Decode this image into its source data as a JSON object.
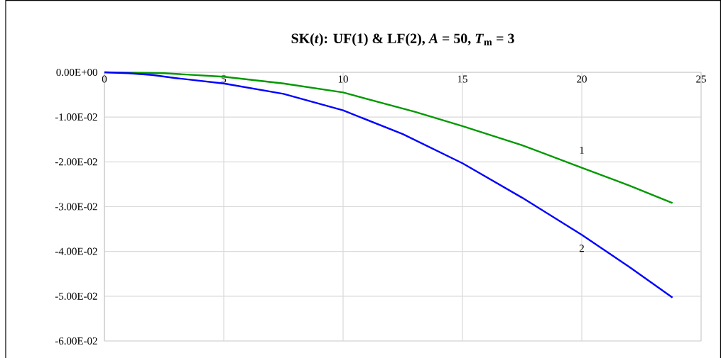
{
  "chart_data": {
    "type": "line",
    "title": "SK(*t*):  UF(1) & LF(2), *A* = 50, *T*$_{m}$ = 3",
    "xlim": [
      0,
      25
    ],
    "xticks": [
      0,
      5,
      10,
      15,
      20,
      25
    ],
    "ylim": [
      -0.06,
      0
    ],
    "yticks": [
      {
        "value": -0.06,
        "label": "-6.00E-02"
      },
      {
        "value": -0.05,
        "label": "-5.00E-02"
      },
      {
        "value": -0.04,
        "label": "-4.00E-02"
      },
      {
        "value": -0.03,
        "label": "-3.00E-02"
      },
      {
        "value": -0.02,
        "label": "-2.00E-02"
      },
      {
        "value": -0.01,
        "label": "-1.00E-02"
      },
      {
        "value": 0,
        "label": "0.00E+00"
      }
    ],
    "grid": true,
    "marker": "none",
    "line_style": "solid",
    "series": [
      {
        "color": "#009900",
        "x": [
          0,
          2.5,
          5,
          7.5,
          10,
          13,
          15,
          17.5,
          20,
          22,
          23.8
        ],
        "values": [
          0,
          -0.0002,
          -0.001,
          -0.0025,
          -0.0045,
          -0.0088,
          -0.012,
          -0.0163,
          -0.0213,
          -0.0253,
          -0.0292
        ]
      },
      {
        "color": "#0000ff",
        "x": [
          0,
          1,
          2,
          3,
          5,
          7.5,
          10,
          12.5,
          15,
          17.5,
          20,
          22,
          23.8
        ],
        "values": [
          0,
          -0.0002,
          -0.0006,
          -0.0013,
          -0.0025,
          -0.0048,
          -0.0085,
          -0.0138,
          -0.0203,
          -0.028,
          -0.0363,
          -0.0435,
          -0.0503
        ]
      }
    ],
    "annotations": [
      "1",
      "2"
    ]
  }
}
